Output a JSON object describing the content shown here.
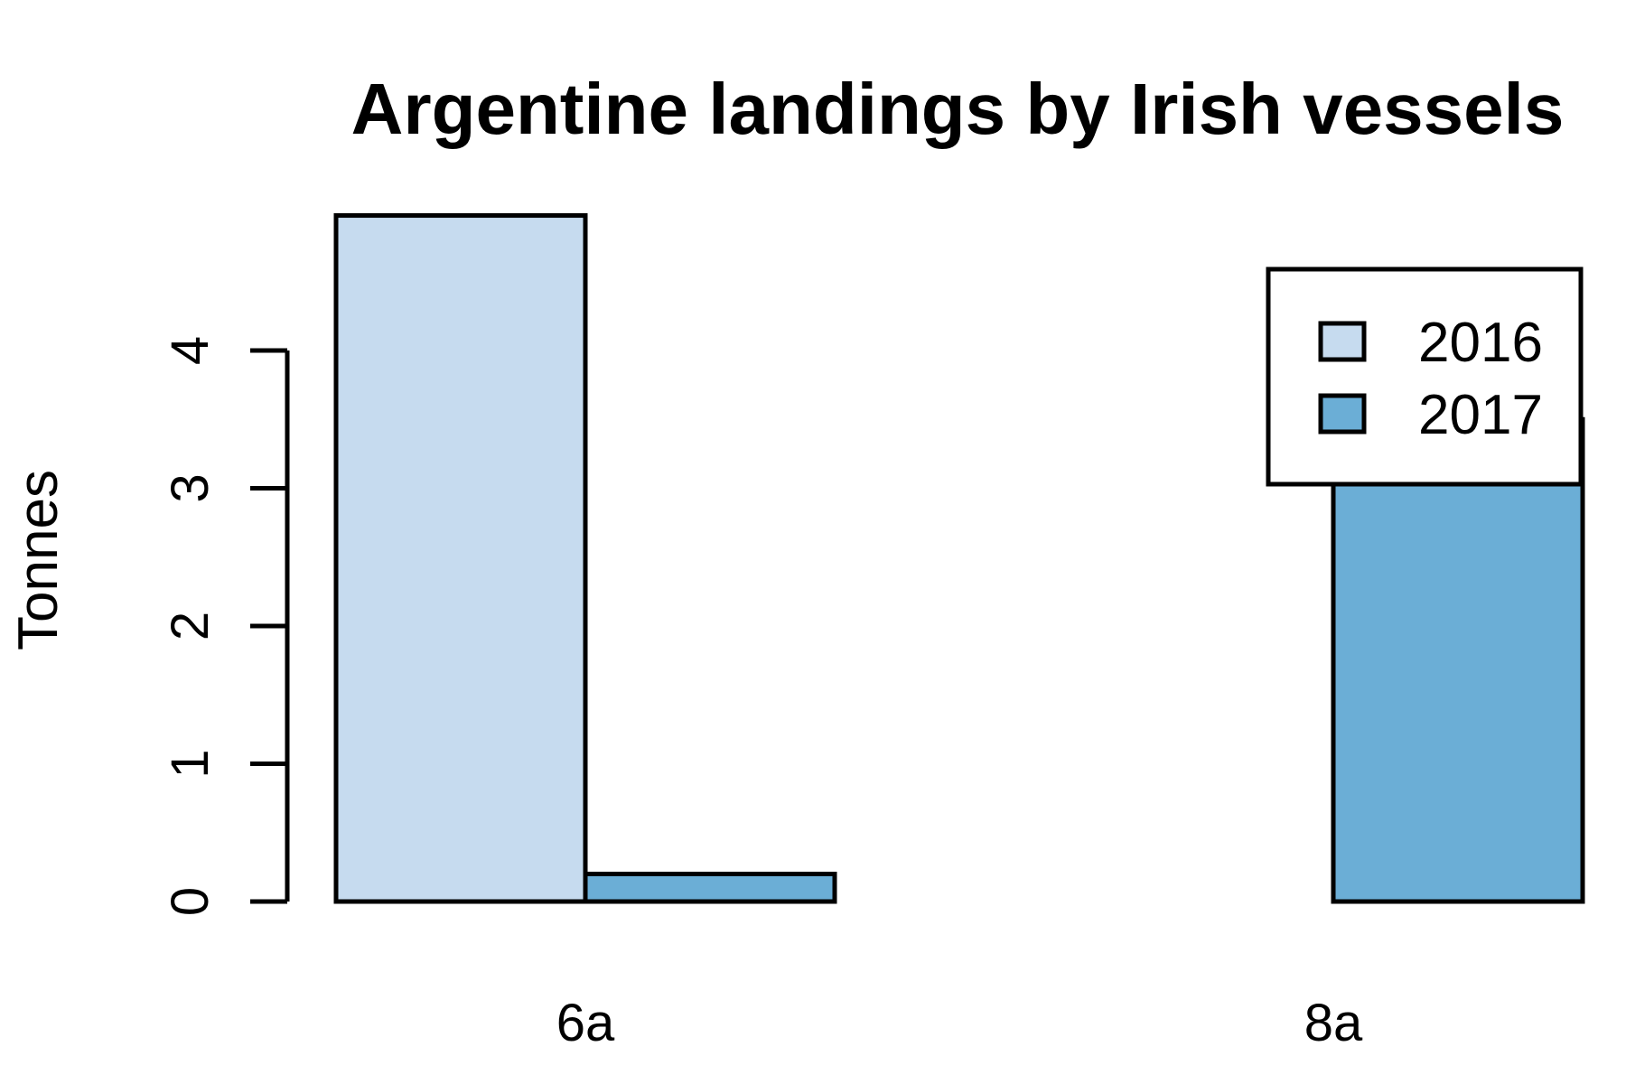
{
  "chart_data": {
    "type": "bar",
    "title": "Argentine landings by Irish vessels",
    "xlabel": "",
    "ylabel": "Tonnes",
    "categories": [
      "6a",
      "8a"
    ],
    "series": [
      {
        "name": "2016",
        "values": [
          4.98,
          0.0
        ]
      },
      {
        "name": "2017",
        "values": [
          0.2,
          3.5
        ]
      }
    ],
    "ylim": [
      0,
      5
    ],
    "yticks": [
      0,
      1,
      2,
      3,
      4
    ],
    "legend": "top-right",
    "grid": false,
    "colors": {
      "2016": "#c6dbef",
      "2017": "#6baed6",
      "stroke": "#000000"
    }
  }
}
